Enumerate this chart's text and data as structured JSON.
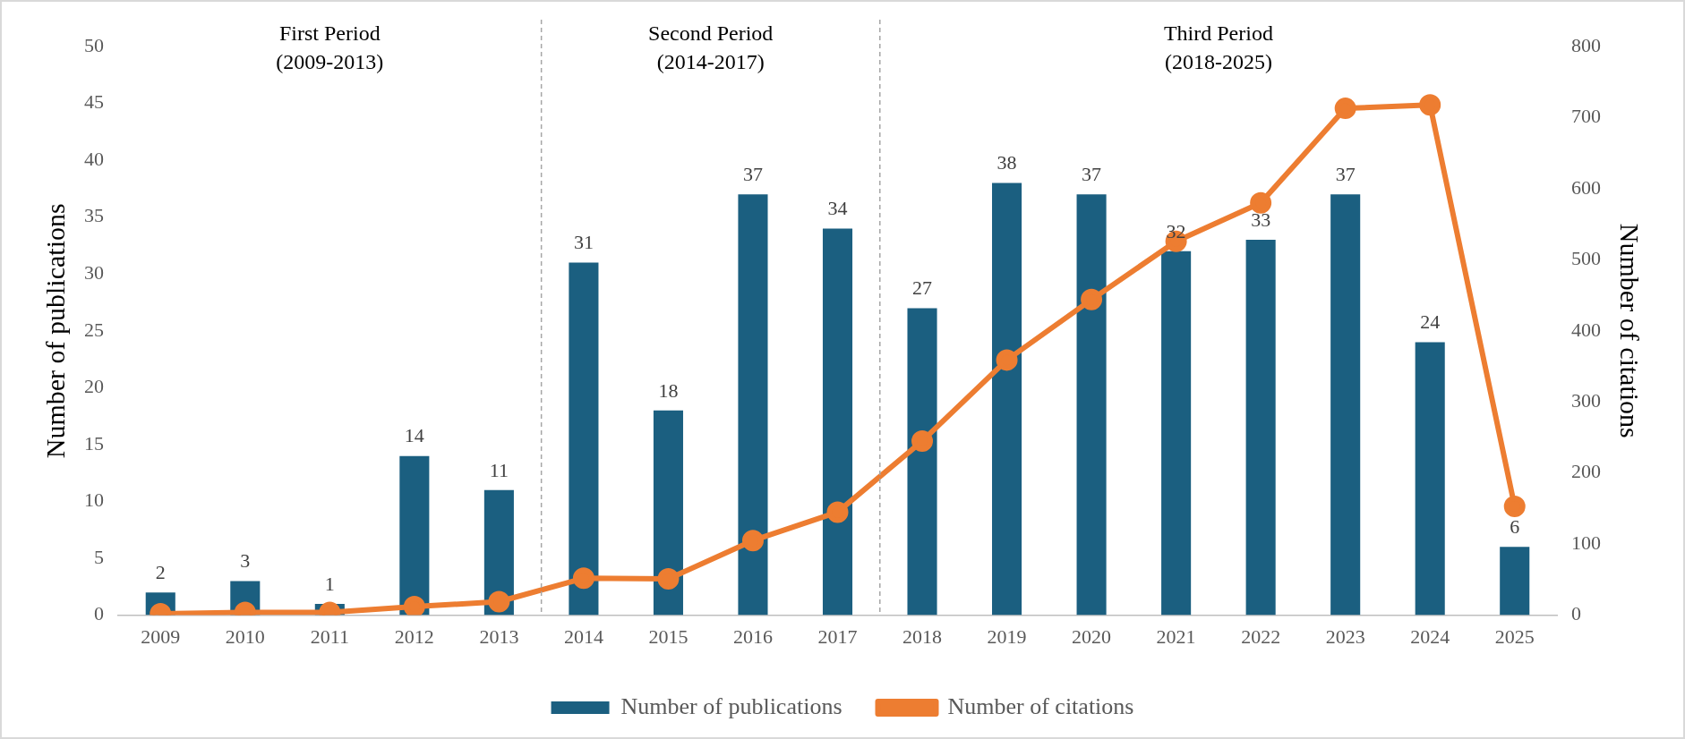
{
  "chart_data": {
    "type": "bar",
    "categories": [
      "2009",
      "2010",
      "2011",
      "2012",
      "2013",
      "2014",
      "2015",
      "2016",
      "2017",
      "2018",
      "2019",
      "2020",
      "2021",
      "2022",
      "2023",
      "2024",
      "2025"
    ],
    "series": [
      {
        "name": "Number of publications",
        "color": "#1b5f80",
        "values": [
          2,
          3,
          1,
          14,
          11,
          31,
          18,
          37,
          34,
          27,
          38,
          37,
          32,
          33,
          37,
          24,
          6
        ],
        "value_labels": [
          "2",
          "3",
          "1",
          "14",
          "11",
          "31",
          "18",
          "37",
          "34",
          "27",
          "38",
          "37",
          "32",
          "33",
          "37",
          "24",
          "6"
        ]
      },
      {
        "name": "Number of citations",
        "type": "line",
        "axis": "y2",
        "color": "#ed7d31",
        "values": [
          2,
          4,
          4,
          12,
          19,
          52,
          51,
          105,
          145,
          245,
          359,
          444,
          526,
          580,
          713,
          718,
          153
        ]
      }
    ],
    "ylabel": "Number of publications",
    "y2label": "Number of citations",
    "ylim": [
      0,
      50
    ],
    "yticks": [
      0,
      5,
      10,
      15,
      20,
      25,
      30,
      35,
      40,
      45,
      50
    ],
    "y2lim": [
      0,
      800
    ],
    "y2ticks": [
      0,
      100,
      200,
      300,
      400,
      500,
      600,
      700,
      800
    ],
    "annotations": [
      "First Period\n(2009-2013)",
      "Second Period\n(2014-2017)",
      "Third Period\n(2018-2025)"
    ],
    "marker": "circle",
    "line_style": "solid",
    "grid": false,
    "legend": "bottom"
  }
}
